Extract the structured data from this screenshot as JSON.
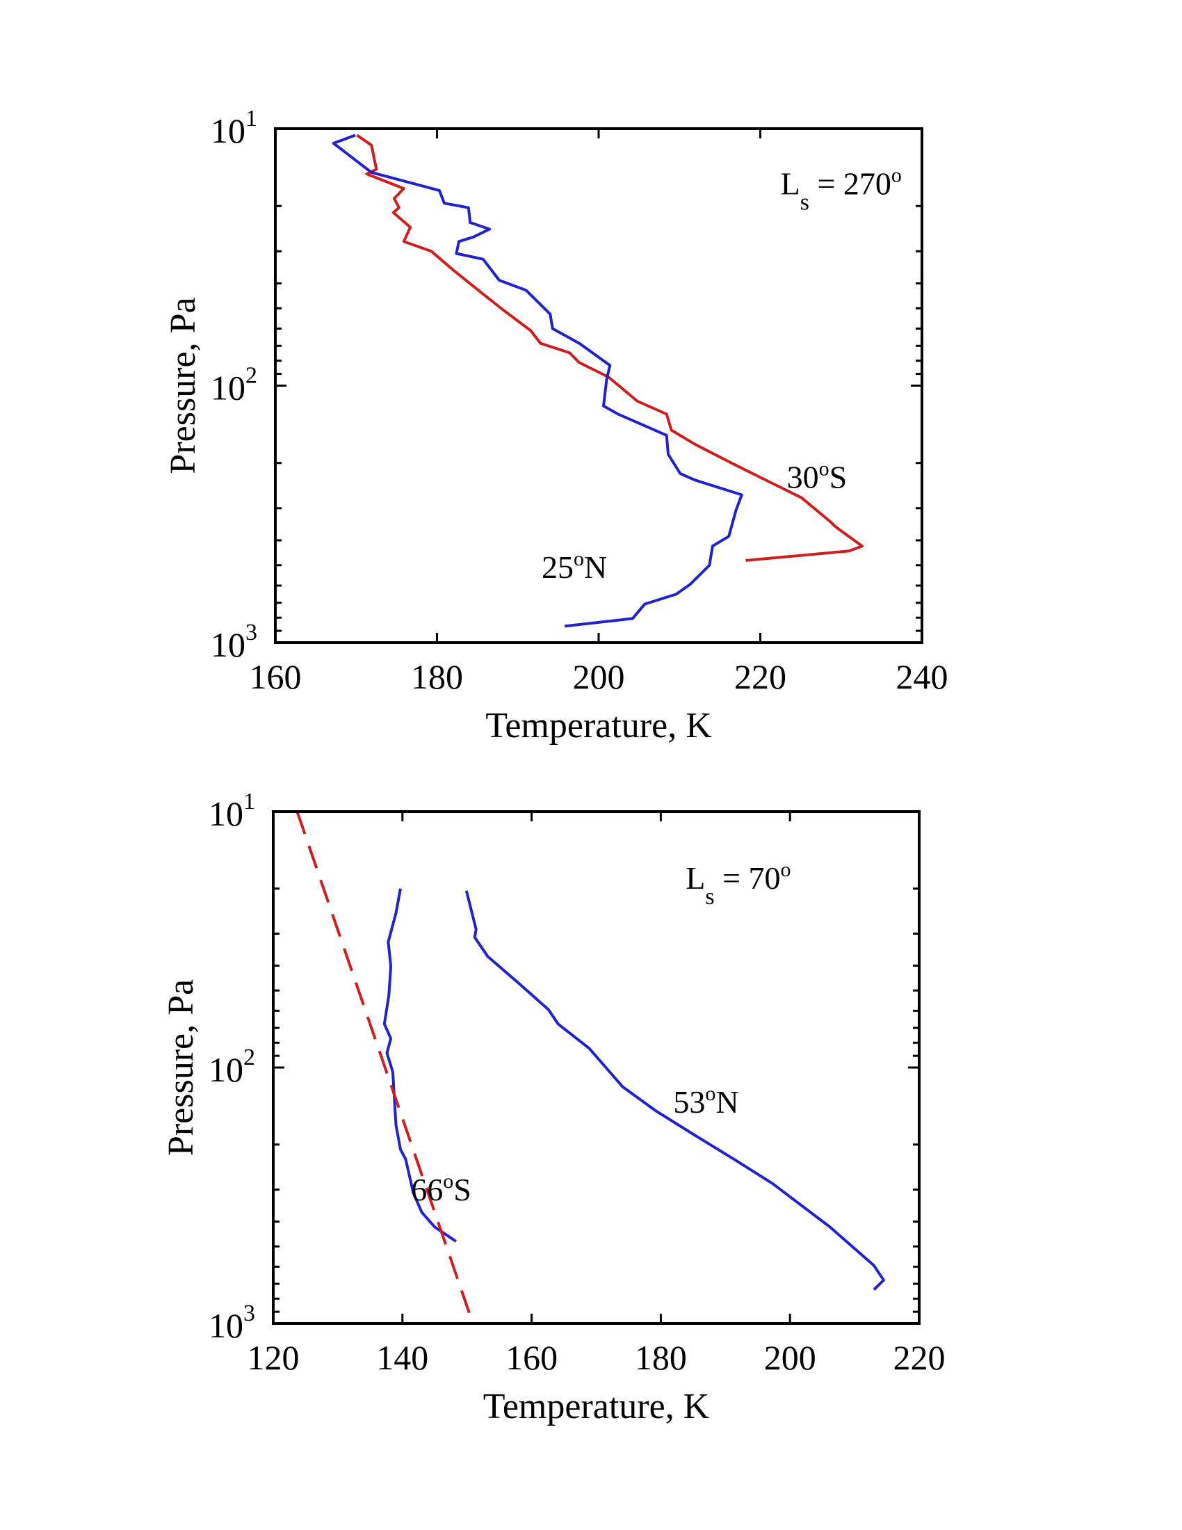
{
  "chart_data": [
    {
      "type": "line",
      "xlabel": "Temperature, K",
      "ylabel": "Pressure, Pa",
      "xlim": [
        160,
        240
      ],
      "xticks": [
        160,
        180,
        200,
        220,
        240
      ],
      "ylim": [
        10,
        1000
      ],
      "yscale": "log",
      "yaxis_inverted": true,
      "yticks": [
        {
          "value": 10,
          "base": "10",
          "exp": "1"
        },
        {
          "value": 100,
          "base": "10",
          "exp": "2"
        },
        {
          "value": 1000,
          "base": "10",
          "exp": "3"
        }
      ],
      "annotation": {
        "main": "L",
        "sub": "s",
        "rest": " = 270",
        "sup": "o",
        "at": [
          230,
          18
        ]
      },
      "series": [
        {
          "name": "30S",
          "label": {
            "pre": "30",
            "sup": "o",
            "post": "S",
            "at": [
              227,
              250
            ]
          },
          "color": "#cc1f1f",
          "dash": false,
          "points": [
            [
              170.1,
              10.6
            ],
            [
              171.9,
              11.6
            ],
            [
              172.5,
              14.4
            ],
            [
              171.3,
              15.0
            ],
            [
              175.9,
              17.1
            ],
            [
              174.7,
              18.7
            ],
            [
              175.3,
              20.3
            ],
            [
              174.6,
              21.2
            ],
            [
              176.7,
              24.2
            ],
            [
              175.9,
              27.5
            ],
            [
              179.3,
              30.0
            ],
            [
              182.1,
              35.7
            ],
            [
              185.1,
              42.5
            ],
            [
              188.1,
              50.5
            ],
            [
              191.6,
              61.1
            ],
            [
              192.8,
              68.4
            ],
            [
              196.4,
              74.5
            ],
            [
              197.6,
              81.3
            ],
            [
              201.2,
              92.5
            ],
            [
              204.8,
              115
            ],
            [
              208.4,
              129
            ],
            [
              209.0,
              149
            ],
            [
              211.9,
              169
            ],
            [
              216.7,
              202
            ],
            [
              221.5,
              240
            ],
            [
              225.1,
              273
            ],
            [
              228.7,
              339
            ],
            [
              229.3,
              354
            ],
            [
              232.6,
              421
            ],
            [
              231.0,
              440
            ],
            [
              218.2,
              479
            ]
          ]
        },
        {
          "name": "25N",
          "label": {
            "pre": "25",
            "sup": "o",
            "post": "N",
            "at": [
              197,
              560
            ]
          },
          "color": "#2222cc",
          "dash": false,
          "points": [
            [
              169.9,
              10.6
            ],
            [
              167.2,
              11.4
            ],
            [
              171.9,
              14.8
            ],
            [
              180.3,
              17.4
            ],
            [
              180.9,
              19.5
            ],
            [
              183.9,
              20.3
            ],
            [
              184.1,
              23.2
            ],
            [
              186.5,
              24.6
            ],
            [
              184.5,
              26.4
            ],
            [
              182.7,
              27.5
            ],
            [
              182.4,
              30.6
            ],
            [
              185.7,
              32.2
            ],
            [
              187.7,
              38.9
            ],
            [
              191.0,
              42.5
            ],
            [
              194.0,
              52.7
            ],
            [
              194.3,
              60.0
            ],
            [
              197.6,
              68.4
            ],
            [
              201.4,
              83.4
            ],
            [
              201.0,
              94.1
            ],
            [
              200.6,
              120
            ],
            [
              202.4,
              129
            ],
            [
              208.4,
              156
            ],
            [
              208.6,
              185
            ],
            [
              210.1,
              220
            ],
            [
              211.9,
              233
            ],
            [
              217.7,
              266
            ],
            [
              217.0,
              305
            ],
            [
              216.1,
              386
            ],
            [
              214.1,
              421
            ],
            [
              213.7,
              500
            ],
            [
              211.3,
              594
            ],
            [
              209.6,
              648
            ],
            [
              205.7,
              708
            ],
            [
              204.2,
              806
            ],
            [
              195.8,
              863
            ]
          ]
        }
      ]
    },
    {
      "type": "line",
      "xlabel": "Temperature, K",
      "ylabel": "Pressure, Pa",
      "xlim": [
        120,
        220
      ],
      "xticks": [
        120,
        140,
        160,
        180,
        200,
        220
      ],
      "ylim": [
        10,
        1000
      ],
      "yscale": "log",
      "yaxis_inverted": true,
      "yticks": [
        {
          "value": 10,
          "base": "10",
          "exp": "1"
        },
        {
          "value": 100,
          "base": "10",
          "exp": "2"
        },
        {
          "value": 1000,
          "base": "10",
          "exp": "3"
        }
      ],
      "annotation": {
        "main": "L",
        "sub": "s",
        "rest": " = 70",
        "sup": "o",
        "at": [
          192,
          20
        ]
      },
      "series": [
        {
          "name": "66S",
          "label": {
            "pre": "66",
            "sup": "o",
            "post": "S",
            "at": [
              146,
              330
            ]
          },
          "color": "#2222cc",
          "dash": false,
          "points": [
            [
              139.7,
              20.0
            ],
            [
              139.0,
              24.9
            ],
            [
              137.8,
              32.3
            ],
            [
              138.2,
              40.2
            ],
            [
              137.9,
              52.1
            ],
            [
              137.2,
              67.6
            ],
            [
              138.2,
              77.0
            ],
            [
              137.6,
              87.8
            ],
            [
              138.5,
              104
            ],
            [
              139.0,
              168
            ],
            [
              139.7,
              209
            ],
            [
              140.5,
              228
            ],
            [
              141.7,
              310
            ],
            [
              143.0,
              368
            ],
            [
              145.0,
              420
            ],
            [
              148.3,
              478
            ]
          ]
        },
        {
          "name": "53N",
          "label": {
            "pre": "53",
            "sup": "o",
            "post": "N",
            "at": [
              187,
              150
            ]
          },
          "color": "#2222cc",
          "dash": false,
          "points": [
            [
              149.9,
              20.4
            ],
            [
              151.4,
              28.8
            ],
            [
              151.2,
              31.0
            ],
            [
              153.2,
              36.8
            ],
            [
              158.4,
              47.8
            ],
            [
              162.6,
              59.4
            ],
            [
              164.1,
              67.6
            ],
            [
              168.9,
              84.1
            ],
            [
              174.1,
              119
            ],
            [
              179.3,
              148
            ],
            [
              185.3,
              184
            ],
            [
              191.3,
              228
            ],
            [
              197.3,
              284
            ],
            [
              206.2,
              420
            ],
            [
              213.0,
              594
            ],
            [
              214.5,
              677
            ],
            [
              213.0,
              738
            ]
          ]
        },
        {
          "name": "dashed reference",
          "color": "#cc1f1f",
          "dash": true,
          "points": [
            [
              123.7,
              10
            ],
            [
              150.9,
              1000
            ]
          ]
        }
      ]
    }
  ]
}
